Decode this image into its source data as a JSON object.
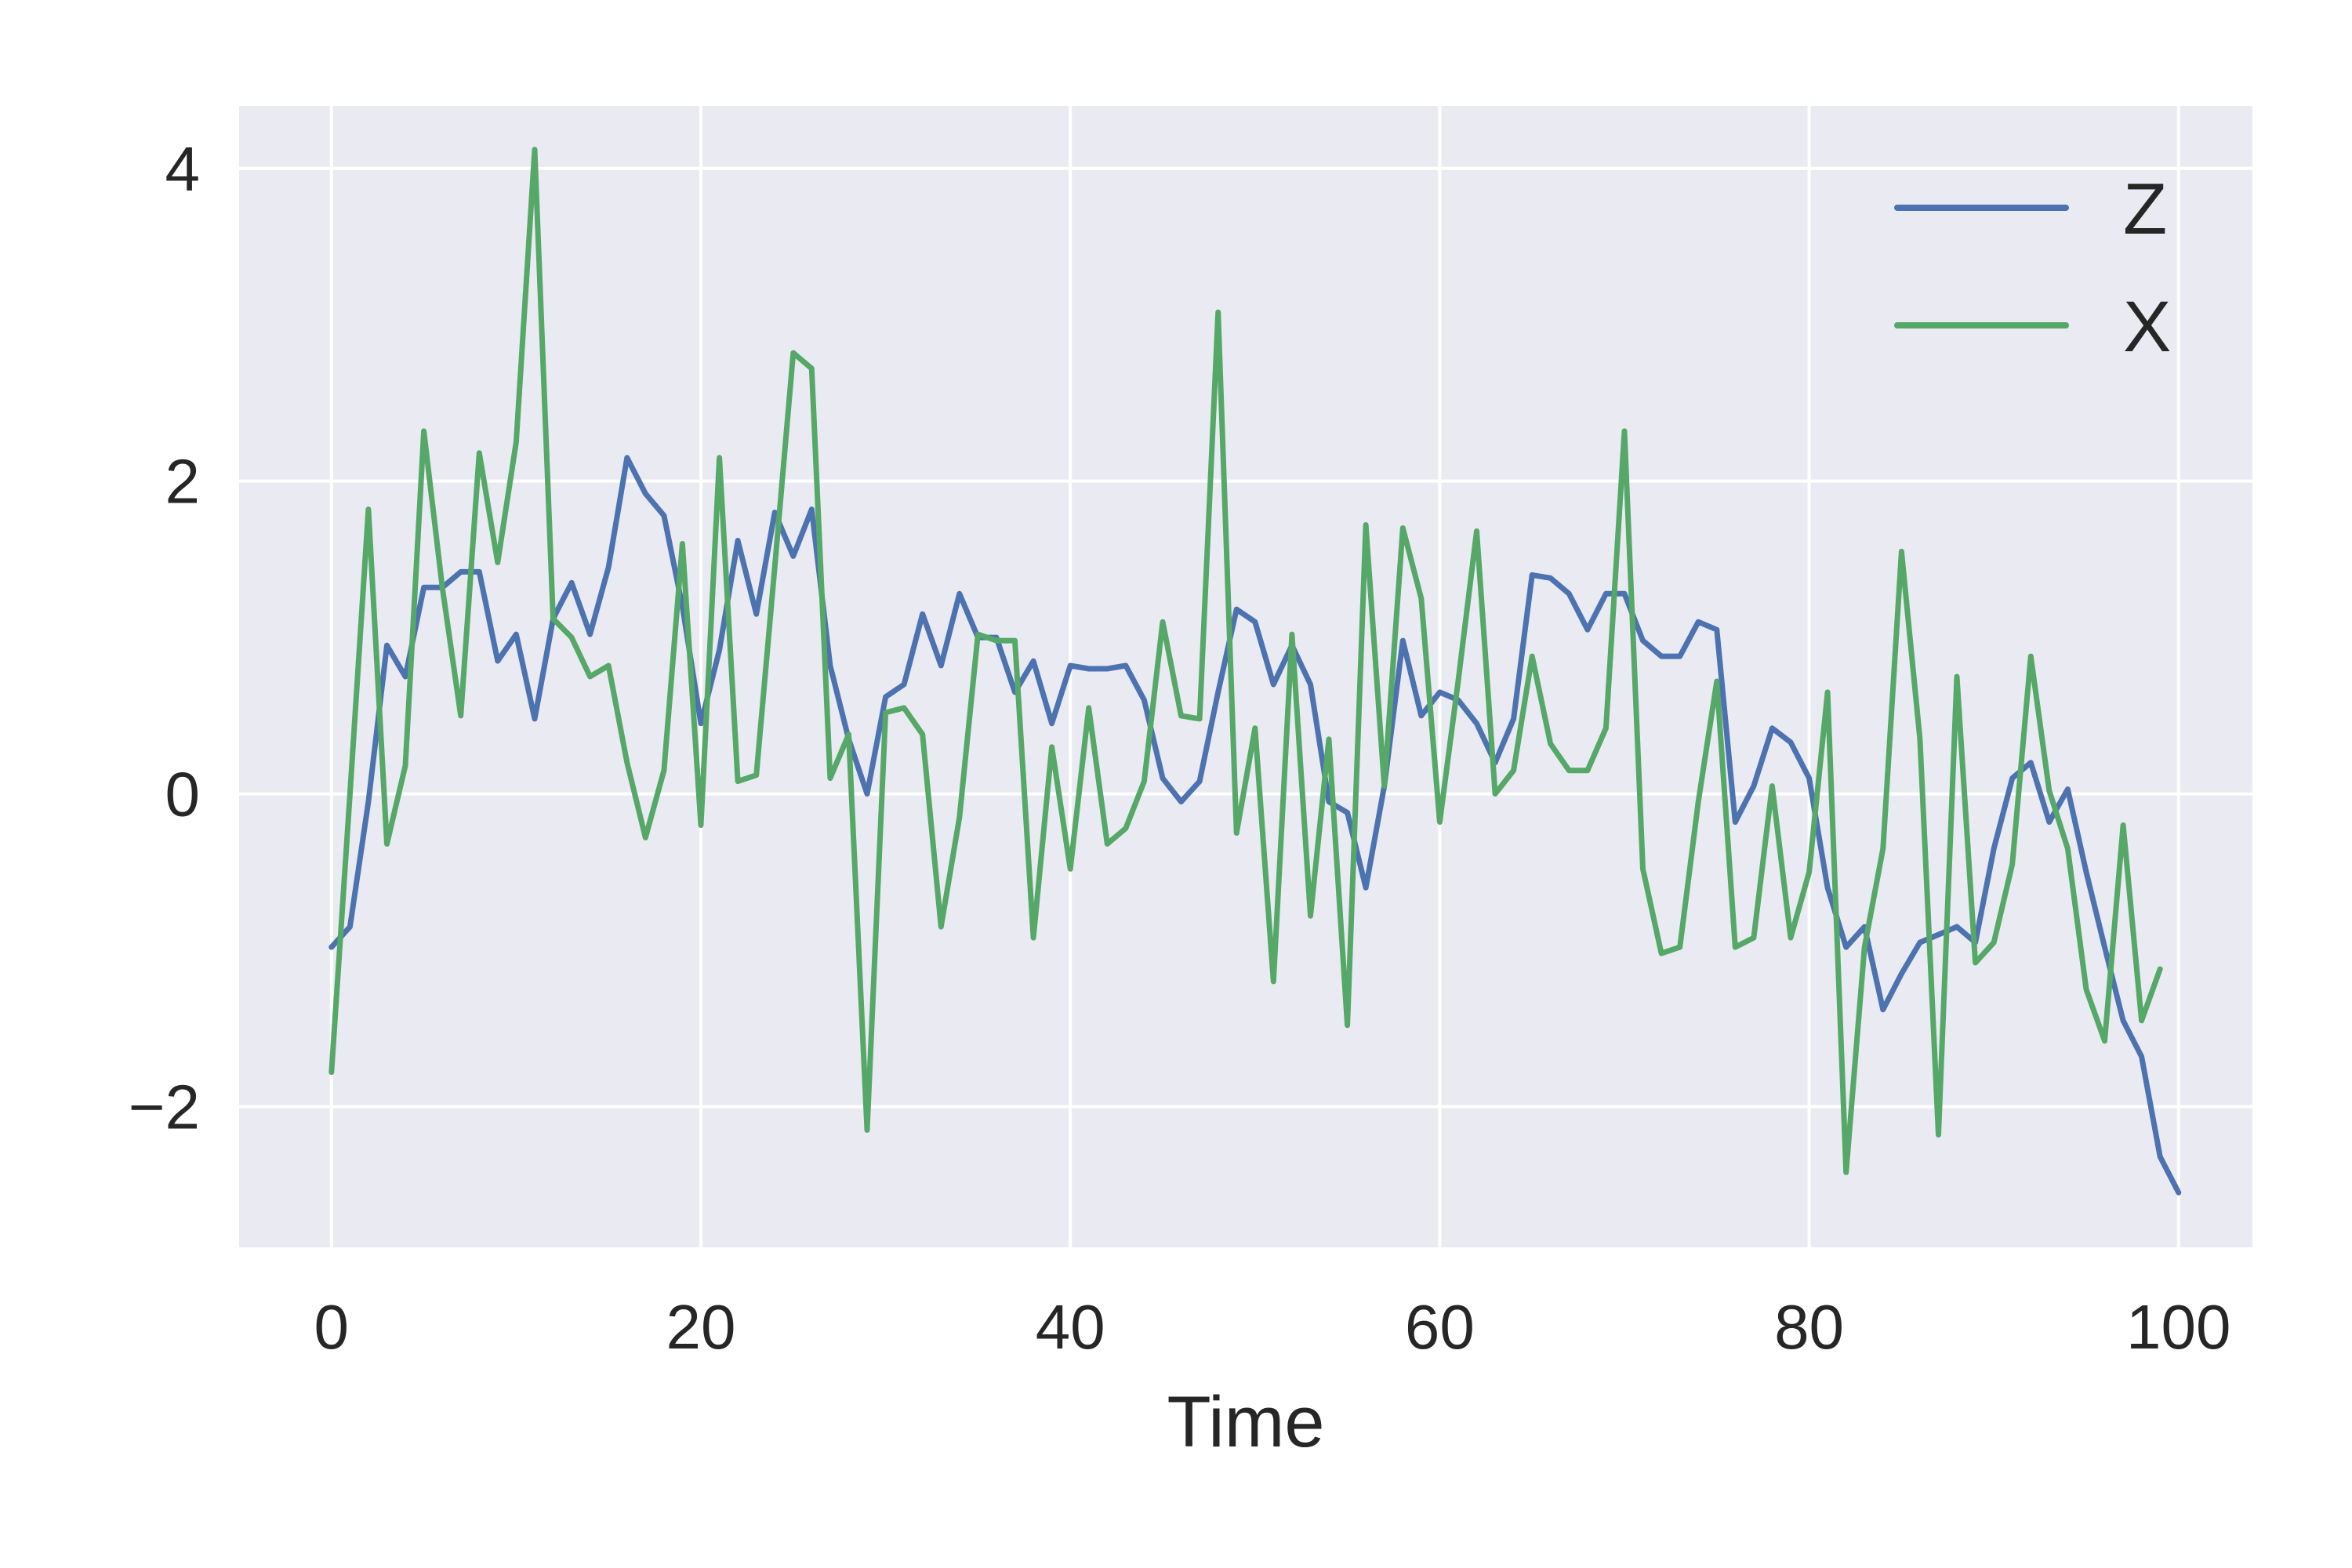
{
  "chart_data": {
    "type": "line",
    "title": "",
    "xlabel": "Time",
    "ylabel": "",
    "xlim": [
      -5,
      104
    ],
    "ylim": [
      -2.9,
      4.4
    ],
    "xticks": [
      0,
      20,
      40,
      60,
      80,
      100
    ],
    "yticks": [
      -2,
      0,
      2,
      4
    ],
    "xtick_labels": [
      "0",
      "20",
      "40",
      "60",
      "80",
      "100"
    ],
    "ytick_labels": [
      "−2",
      "0",
      "2",
      "4"
    ],
    "grid": true,
    "legend_position": "top-right",
    "series": [
      {
        "name": "Z",
        "color": "#4c72b0",
        "values": [
          -0.98,
          -0.85,
          -0.05,
          0.95,
          0.75,
          1.32,
          1.32,
          1.42,
          1.42,
          0.85,
          1.02,
          0.48,
          1.12,
          1.35,
          1.02,
          1.45,
          2.15,
          1.92,
          1.78,
          1.2,
          0.45,
          0.92,
          1.62,
          1.15,
          1.8,
          1.52,
          1.82,
          0.82,
          0.35,
          0.0,
          0.62,
          0.7,
          1.15,
          0.82,
          1.28,
          1.0,
          1.0,
          0.65,
          0.85,
          0.45,
          0.82,
          0.8,
          0.8,
          0.82,
          0.6,
          0.1,
          -0.05,
          0.08,
          0.65,
          1.18,
          1.1,
          0.7,
          0.95,
          0.7,
          -0.05,
          -0.12,
          -0.6,
          0.05,
          0.98,
          0.5,
          0.65,
          0.6,
          0.45,
          0.2,
          0.48,
          1.4,
          1.38,
          1.28,
          1.05,
          1.28,
          1.28,
          0.98,
          0.88,
          0.88,
          1.1,
          1.05,
          -0.18,
          0.05,
          0.42,
          0.33,
          0.1,
          -0.6,
          -0.98,
          -0.85,
          -1.38,
          -1.15,
          -0.95,
          -0.9,
          -0.85,
          -0.95,
          -0.35,
          0.1,
          0.2,
          -0.18,
          0.03,
          -0.5,
          -0.98,
          -1.45,
          -1.68,
          -2.32,
          -2.55
        ]
      },
      {
        "name": "X",
        "color": "#55a868",
        "values": [
          -1.78,
          0.0,
          1.82,
          -0.32,
          0.18,
          2.32,
          1.32,
          0.5,
          2.18,
          1.48,
          2.25,
          4.12,
          1.12,
          1.0,
          0.75,
          0.82,
          0.2,
          -0.28,
          0.15,
          1.6,
          -0.2,
          2.15,
          0.08,
          0.12,
          1.45,
          2.82,
          2.72,
          0.1,
          0.38,
          -2.15,
          0.52,
          0.55,
          0.38,
          -0.85,
          -0.15,
          1.02,
          0.98,
          0.98,
          -0.92,
          0.3,
          -0.48,
          0.55,
          -0.32,
          -0.22,
          0.08,
          1.1,
          0.5,
          0.48,
          3.08,
          -0.25,
          0.42,
          -1.2,
          1.02,
          -0.78,
          0.35,
          -1.48,
          1.72,
          0.05,
          1.7,
          1.25,
          -0.18,
          0.72,
          1.68,
          0.0,
          0.15,
          0.88,
          0.32,
          0.15,
          0.15,
          0.42,
          2.32,
          -0.48,
          -1.02,
          -0.98,
          -0.05,
          0.72,
          -0.98,
          -0.92,
          0.05,
          -0.92,
          -0.5,
          0.65,
          -2.42,
          -0.98,
          -0.35,
          1.55,
          0.35,
          -2.18,
          0.75,
          -1.08,
          -0.95,
          -0.45,
          0.88,
          0.02,
          -0.35,
          -1.25,
          -1.58,
          -0.2,
          -1.45,
          -1.12
        ]
      }
    ]
  }
}
